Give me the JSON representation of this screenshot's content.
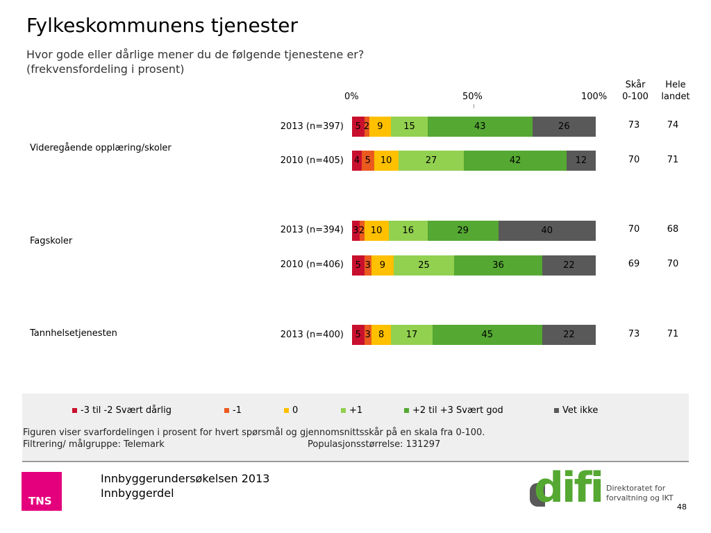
{
  "title": "Fylkeskommunens tjenester",
  "subtitle_line1": "Hvor gode eller dårlige mener du de følgende tjenestene er?",
  "subtitle_line2": "(frekvensfordeling i prosent)",
  "columns": {
    "score_line1": "Skår",
    "score_line2": "0-100",
    "national_line1": "Hele",
    "national_line2": "landet"
  },
  "colors": {
    "c1": "#c8102e",
    "c2": "#ea5a1e",
    "c3": "#ffc000",
    "c4": "#92d050",
    "c5": "#55a832",
    "c6": "#595959"
  },
  "chart_data": {
    "type": "bar",
    "orientation": "horizontal",
    "stacked": true,
    "axis_ticks": [
      "0%",
      "50%",
      "100%"
    ],
    "xlim": [
      0,
      100
    ],
    "categories_legend": [
      "-3 til -2 Svært dårlig",
      "-1",
      "0",
      "+1",
      "+2 til +3 Svært god",
      "Vet ikke"
    ],
    "groups": [
      {
        "label": "Videregående opplæring/skoler",
        "rows": [
          {
            "label": "2013 (n=397)",
            "values": [
              5,
              2,
              9,
              15,
              43,
              26
            ],
            "score": "73",
            "national": "74"
          },
          {
            "label": "2010 (n=405)",
            "values": [
              4,
              5,
              10,
              27,
              42,
              12
            ],
            "score": "70",
            "national": "71"
          }
        ]
      },
      {
        "label": "Fagskoler",
        "rows": [
          {
            "label": "2013 (n=394)",
            "values": [
              3,
              2,
              10,
              16,
              29,
              40
            ],
            "score": "70",
            "national": "68"
          },
          {
            "label": "2010 (n=406)",
            "values": [
              5,
              3,
              9,
              25,
              36,
              22
            ],
            "score": "69",
            "national": "70"
          }
        ]
      },
      {
        "label": "Tannhelsetjenesten",
        "rows": [
          {
            "label": "2013 (n=400)",
            "values": [
              5,
              3,
              8,
              17,
              45,
              22
            ],
            "score": "73",
            "national": "71"
          }
        ]
      }
    ]
  },
  "notes": {
    "line1": "Figuren viser svarfordelingen i prosent for hvert spørsmål og gjennomsnittsskår på en skala fra 0-100.",
    "filter": "Filtrering/ målgruppe: Telemark",
    "population": "Populasjonsstørrelse: 131297"
  },
  "footer": {
    "line1": "Innbyggerundersøkelsen 2013",
    "line2": "Innbyggerdel",
    "tns_logo": "TNS",
    "difi_logo": "difi",
    "difi_text1": "Direktoratet for",
    "difi_text2": "forvaltning og IKT",
    "page": "48"
  }
}
